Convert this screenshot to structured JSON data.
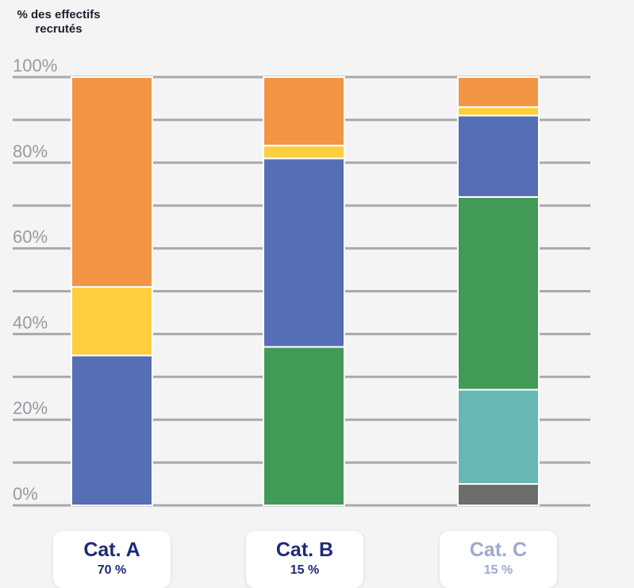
{
  "y_axis_title_line1": "% des effectifs",
  "y_axis_title_line2": "recrutés",
  "chart_data": {
    "type": "bar",
    "stacked": true,
    "title": "",
    "xlabel": "",
    "ylabel": "% des effectifs recrutés",
    "ylim": [
      0,
      100
    ],
    "yticks": [
      "0%",
      "20%",
      "40%",
      "60%",
      "80%",
      "100%"
    ],
    "grid": true,
    "categories": [
      "Cat. A",
      "Cat. B",
      "Cat. C"
    ],
    "category_shares": [
      "70 %",
      "15 %",
      "15 %"
    ],
    "series": [
      {
        "color": "#6d6d6d",
        "values": [
          0,
          0,
          5
        ]
      },
      {
        "color": "#67b8b5",
        "values": [
          0,
          0,
          22
        ]
      },
      {
        "color": "#429a57",
        "values": [
          0,
          37,
          45
        ]
      },
      {
        "color": "#566eb5",
        "values": [
          35,
          44,
          19
        ]
      },
      {
        "color": "#fdcf3f",
        "values": [
          16,
          3,
          2
        ]
      },
      {
        "color": "#f29544",
        "values": [
          49,
          16,
          7
        ]
      }
    ]
  }
}
